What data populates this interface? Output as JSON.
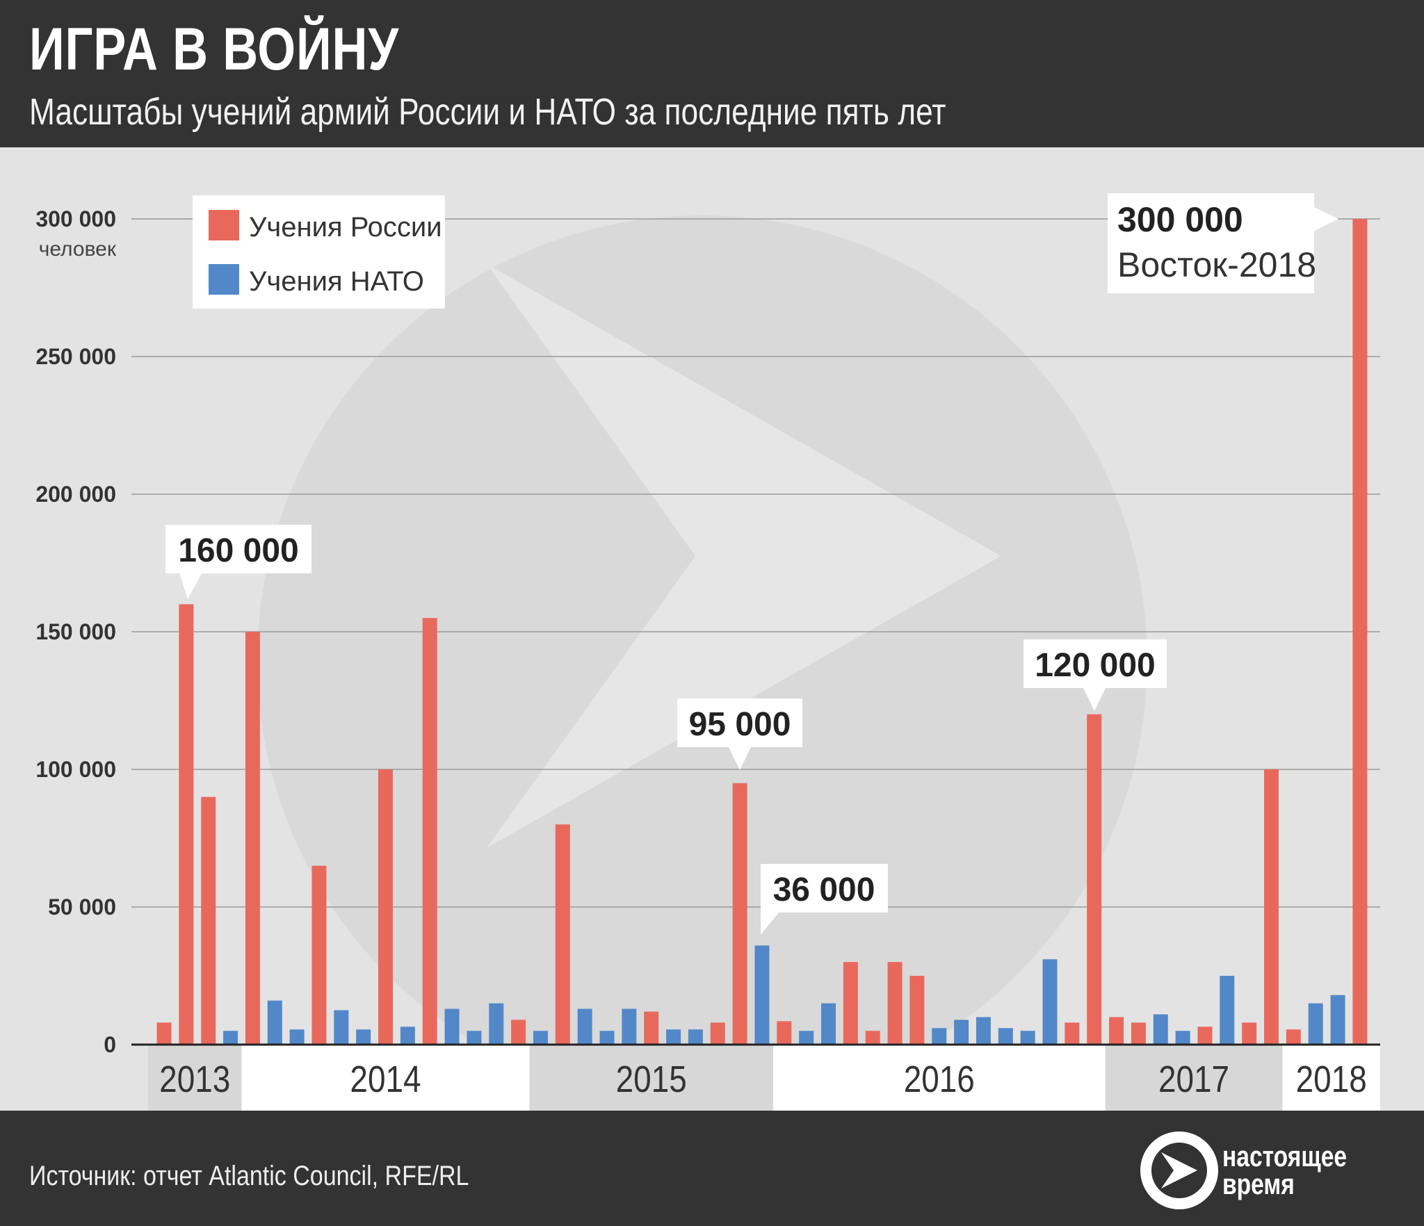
{
  "header": {
    "title": "ИГРА В ВОЙНУ",
    "subtitle": "Масштабы учений армий России и НАТО за последние пять лет"
  },
  "footer": {
    "source": "Источник: отчет Atlantic Council, RFE/RL",
    "brand_line1": "настоящее",
    "brand_line2": "время"
  },
  "colors": {
    "russia": "#e8695c",
    "nato": "#5288c8",
    "header": "#333333"
  },
  "chart_data": {
    "type": "bar",
    "title": "ИГРА В ВОЙНУ",
    "ylabel": "человек",
    "ylim": [
      0,
      300000
    ],
    "yticks": [
      0,
      50000,
      100000,
      150000,
      200000,
      250000,
      300000
    ],
    "ytick_labels": [
      "0",
      "50 000",
      "100 000",
      "150 000",
      "200 000",
      "250 000",
      "300 000"
    ],
    "grid": true,
    "legend": {
      "placement": "top-left",
      "entries": [
        "Учения России",
        "Учения НАТО"
      ]
    },
    "years": [
      {
        "label": "2013",
        "bars": 4
      },
      {
        "label": "2014",
        "bars": 13
      },
      {
        "label": "2015",
        "bars": 11
      },
      {
        "label": "2016",
        "bars": 15
      },
      {
        "label": "2017",
        "bars": 8
      },
      {
        "label": "2018",
        "bars": 4
      }
    ],
    "bars": [
      [
        "R",
        8000
      ],
      [
        "R",
        160000
      ],
      [
        "R",
        90000
      ],
      [
        "N",
        5000
      ],
      [
        "R",
        150000
      ],
      [
        "N",
        16000
      ],
      [
        "N",
        5500
      ],
      [
        "R",
        65000
      ],
      [
        "N",
        12500
      ],
      [
        "N",
        5500
      ],
      [
        "R",
        100000
      ],
      [
        "N",
        6500
      ],
      [
        "R",
        155000
      ],
      [
        "N",
        13000
      ],
      [
        "N",
        5000
      ],
      [
        "N",
        15000
      ],
      [
        "R",
        9000
      ],
      [
        "N",
        5000
      ],
      [
        "R",
        80000
      ],
      [
        "N",
        13000
      ],
      [
        "N",
        5000
      ],
      [
        "N",
        13000
      ],
      [
        "R",
        12000
      ],
      [
        "N",
        5500
      ],
      [
        "N",
        5500
      ],
      [
        "R",
        8000
      ],
      [
        "R",
        95000
      ],
      [
        "N",
        36000
      ],
      [
        "R",
        8500
      ],
      [
        "N",
        5000
      ],
      [
        "N",
        15000
      ],
      [
        "R",
        30000
      ],
      [
        "R",
        5000
      ],
      [
        "R",
        30000
      ],
      [
        "R",
        25000
      ],
      [
        "N",
        6000
      ],
      [
        "N",
        9000
      ],
      [
        "N",
        10000
      ],
      [
        "N",
        6000
      ],
      [
        "N",
        5000
      ],
      [
        "N",
        31000
      ],
      [
        "R",
        8000
      ],
      [
        "R",
        120000
      ],
      [
        "R",
        10000
      ],
      [
        "R",
        8000
      ],
      [
        "N",
        11000
      ],
      [
        "N",
        5000
      ],
      [
        "R",
        6500
      ],
      [
        "N",
        25000
      ],
      [
        "R",
        8000
      ],
      [
        "R",
        100000
      ],
      [
        "R",
        5500
      ],
      [
        "N",
        15000
      ],
      [
        "N",
        18000
      ],
      [
        "R",
        300000
      ]
    ],
    "annotations": [
      {
        "bar": 2,
        "text": "160 000"
      },
      {
        "bar": 27,
        "text": "95 000"
      },
      {
        "bar": 28,
        "text": "36 000"
      },
      {
        "bar": 43,
        "text": "120 000"
      },
      {
        "bar": 55,
        "text": "300 000",
        "subtext": "Восток-2018"
      }
    ]
  }
}
